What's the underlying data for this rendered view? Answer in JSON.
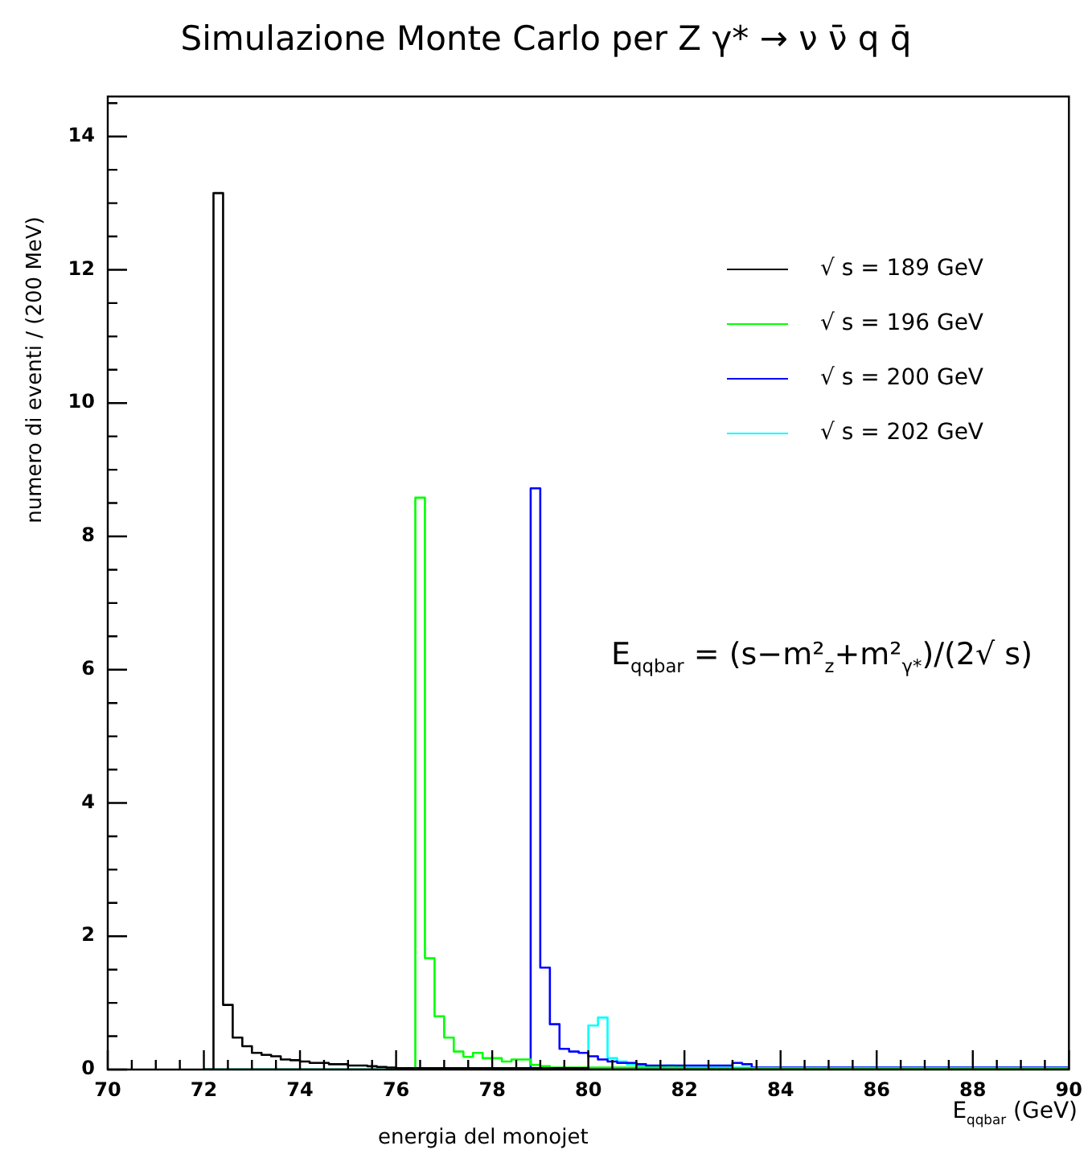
{
  "chart_data": {
    "type": "histogram",
    "title": "Simulazione Monte Carlo per Z γ* → ν ν̄ q q̄",
    "xlabel": "E$_{qqbar}$ (GeV)",
    "ylabel": "numero di eventi / (200 MeV)",
    "annotations": [
      "energia del monojet",
      "E$_{qqbar}$ = (s−m²$_{z}$+m²$_{γ*}$)/(2√ s)"
    ],
    "bins": [
      72,
      72.2,
      72.4,
      72.6,
      72.8,
      73,
      73.2,
      73.4,
      73.6,
      73.8,
      74,
      74.2,
      74.4,
      74.6,
      74.8,
      75,
      75.2,
      75.4,
      75.6,
      75.8,
      76,
      76.2,
      76.4,
      76.6,
      76.8,
      77,
      77.2,
      77.4,
      77.6,
      77.8,
      78,
      78.2,
      78.4,
      78.6,
      78.8,
      79,
      79.2,
      79.4,
      79.6,
      79.8,
      80,
      80.2,
      80.4,
      80.6,
      80.8,
      81,
      81.2,
      81.4,
      81.6,
      81.8,
      82,
      82.2,
      82.4,
      82.6,
      82.8,
      83,
      83.2,
      83.4,
      83.6,
      83.8,
      84,
      84.2,
      84.4,
      84.6,
      84.8,
      85,
      85.2,
      85.4,
      85.6,
      85.8,
      86,
      86.2,
      86.4,
      86.6,
      86.8,
      87,
      87.2,
      87.4,
      87.6,
      87.8,
      88,
      88.2,
      88.4,
      88.6,
      88.8,
      89,
      89.2,
      89.4,
      89.6,
      89.8,
      90
    ],
    "series": [
      {
        "name": "√ s = 189 GeV",
        "color": "#000000",
        "values": [
          0,
          13.15,
          0.97,
          0.48,
          0.35,
          0.25,
          0.22,
          0.2,
          0.15,
          0.14,
          0.12,
          0.1,
          0.1,
          0.08,
          0.08,
          0.06,
          0.06,
          0.05,
          0.04,
          0.03,
          0.02,
          0.02,
          0.02,
          0.02,
          0.02,
          0.02,
          0.02,
          0.02,
          0.02,
          0.02,
          0.02,
          0.02,
          0.02,
          0.02,
          0.02,
          0.02,
          0.02,
          0.02,
          0.02,
          0.02,
          0,
          0,
          0,
          0,
          0,
          0,
          0,
          0,
          0,
          0,
          0,
          0,
          0,
          0,
          0,
          0,
          0,
          0,
          0,
          0,
          0,
          0,
          0,
          0,
          0,
          0,
          0,
          0,
          0,
          0,
          0,
          0,
          0,
          0,
          0,
          0,
          0,
          0,
          0,
          0,
          0,
          0,
          0,
          0,
          0,
          0,
          0,
          0,
          0,
          0
        ]
      },
      {
        "name": "√ s = 196 GeV",
        "color": "#00ff00",
        "values": [
          0,
          0,
          0,
          0,
          0,
          0,
          0,
          0,
          0,
          0,
          0,
          0,
          0,
          0,
          0,
          0,
          0,
          0,
          0,
          0,
          0,
          0,
          8.58,
          1.67,
          0.8,
          0.48,
          0.27,
          0.19,
          0.25,
          0.17,
          0.17,
          0.12,
          0.15,
          0.15,
          0.07,
          0.05,
          0.03,
          0.03,
          0.03,
          0.03,
          0.03,
          0.03,
          0.03,
          0.03,
          0.03,
          0.03,
          0.03,
          0.03,
          0.03,
          0.03,
          0.02,
          0.02,
          0.02,
          0.02,
          0.02,
          0.02,
          0.02,
          0.02,
          0.02,
          0.02,
          0.02,
          0.02,
          0.02,
          0.02,
          0.02,
          0.02,
          0.02,
          0.02,
          0.02,
          0.02,
          0.02,
          0.02,
          0.02,
          0.02,
          0.02,
          0.02,
          0.02,
          0.02,
          0.02,
          0.02,
          0.02,
          0.02,
          0.02,
          0.02,
          0.02,
          0.02,
          0.02,
          0.02,
          0.02,
          0.02
        ]
      },
      {
        "name": "√ s = 200 GeV",
        "color": "#0000ff",
        "values": [
          0,
          0,
          0,
          0,
          0,
          0,
          0,
          0,
          0,
          0,
          0,
          0,
          0,
          0,
          0,
          0,
          0,
          0,
          0,
          0,
          0,
          0,
          0,
          0,
          0,
          0,
          0,
          0,
          0,
          0,
          0,
          0,
          0,
          0,
          8.72,
          1.53,
          0.68,
          0.31,
          0.27,
          0.25,
          0.2,
          0.15,
          0.12,
          0.1,
          0.1,
          0.08,
          0.06,
          0.06,
          0.06,
          0.06,
          0.06,
          0.06,
          0.06,
          0.06,
          0.06,
          0.1,
          0.08,
          0.03,
          0.03,
          0.03,
          0.03,
          0.03,
          0.03,
          0.03,
          0.03,
          0.03,
          0.03,
          0.03,
          0.03,
          0.03,
          0.03,
          0.03,
          0.03,
          0.03,
          0.03,
          0.03,
          0.03,
          0.03,
          0.03,
          0.03,
          0.03,
          0.03,
          0.03,
          0.03,
          0.03,
          0.03,
          0.03,
          0.03,
          0.03,
          0.03
        ]
      },
      {
        "name": "√ s = 202 GeV",
        "color": "#00ffff",
        "values": [
          0,
          0,
          0,
          0,
          0,
          0,
          0,
          0,
          0,
          0,
          0,
          0,
          0,
          0,
          0,
          0,
          0,
          0,
          0,
          0,
          0,
          0,
          0,
          0,
          0,
          0,
          0,
          0,
          0,
          0,
          0,
          0,
          0,
          0,
          0,
          0,
          0,
          0,
          0,
          0,
          0.66,
          0.78,
          0.17,
          0.12,
          0.08,
          0.06,
          0.05,
          0.04,
          0.06,
          0.05,
          0.03,
          0.03,
          0.03,
          0.03,
          0.03,
          0.03,
          0.03,
          0.03,
          0.03,
          0.03,
          0.03,
          0.03,
          0.03,
          0.03,
          0.03,
          0.03,
          0.03,
          0.03,
          0.03,
          0.03,
          0.03,
          0.03,
          0.03,
          0.03,
          0.03,
          0.03,
          0.03,
          0.03,
          0.03,
          0.03,
          0.03,
          0.03,
          0.03,
          0.03,
          0.03,
          0.03,
          0.03,
          0.03,
          0.03,
          0.03
        ]
      }
    ],
    "xlim": [
      70,
      90
    ],
    "xticks": [
      70,
      {
        "value": 70.5,
        "label": null
      },
      {
        "value": 71,
        "label": null
      },
      {
        "value": 71.5,
        "label": null
      },
      72,
      {
        "value": 72.5,
        "label": null
      },
      {
        "value": 73,
        "label": null
      },
      {
        "value": 73.5,
        "label": null
      },
      74,
      {
        "value": 74.5,
        "label": null
      },
      {
        "value": 75,
        "label": null
      },
      {
        "value": 75.5,
        "label": null
      },
      76,
      {
        "value": 76.5,
        "label": null
      },
      {
        "value": 77,
        "label": null
      },
      {
        "value": 77.5,
        "label": null
      },
      78,
      {
        "value": 78.5,
        "label": null
      },
      {
        "value": 79,
        "label": null
      },
      {
        "value": 79.5,
        "label": null
      },
      80,
      {
        "value": 80.5,
        "label": null
      },
      {
        "value": 81,
        "label": null
      },
      {
        "value": 81.5,
        "label": null
      },
      82,
      {
        "value": 82.5,
        "label": null
      },
      {
        "value": 83,
        "label": null
      },
      {
        "value": 83.5,
        "label": null
      },
      84,
      {
        "value": 84.5,
        "label": null
      },
      {
        "value": 85,
        "label": null
      },
      {
        "value": 85.5,
        "label": null
      },
      86,
      {
        "value": 86.5,
        "label": null
      },
      {
        "value": 87,
        "label": null
      },
      {
        "value": 87.5,
        "label": null
      },
      88,
      {
        "value": 88.5,
        "label": null
      },
      {
        "value": 89,
        "label": null
      },
      {
        "value": 89.5,
        "label": null
      },
      90
    ],
    "ylim": [
      0,
      14.6
    ],
    "yticks": [
      0,
      {
        "value": 0.5,
        "label": null
      },
      {
        "value": 1,
        "label": null
      },
      {
        "value": 1.5,
        "label": null
      },
      2,
      {
        "value": 2.5,
        "label": null
      },
      {
        "value": 3,
        "label": null
      },
      {
        "value": 3.5,
        "label": null
      },
      4,
      {
        "value": 4.5,
        "label": null
      },
      {
        "value": 5,
        "label": null
      },
      {
        "value": 5.5,
        "label": null
      },
      6,
      {
        "value": 6.5,
        "label": null
      },
      {
        "value": 7,
        "label": null
      },
      {
        "value": 7.5,
        "label": null
      },
      8,
      {
        "value": 8.5,
        "label": null
      },
      {
        "value": 9,
        "label": null
      },
      {
        "value": 9.5,
        "label": null
      },
      10,
      {
        "value": 10.5,
        "label": null
      },
      {
        "value": 11,
        "label": null
      },
      {
        "value": 11.5,
        "label": null
      },
      12,
      {
        "value": 12.5,
        "label": null
      },
      {
        "value": 13,
        "label": null
      },
      {
        "value": 13.5,
        "label": null
      },
      14,
      {
        "value": 14.5,
        "label": null
      }
    ],
    "legend": "top right"
  }
}
